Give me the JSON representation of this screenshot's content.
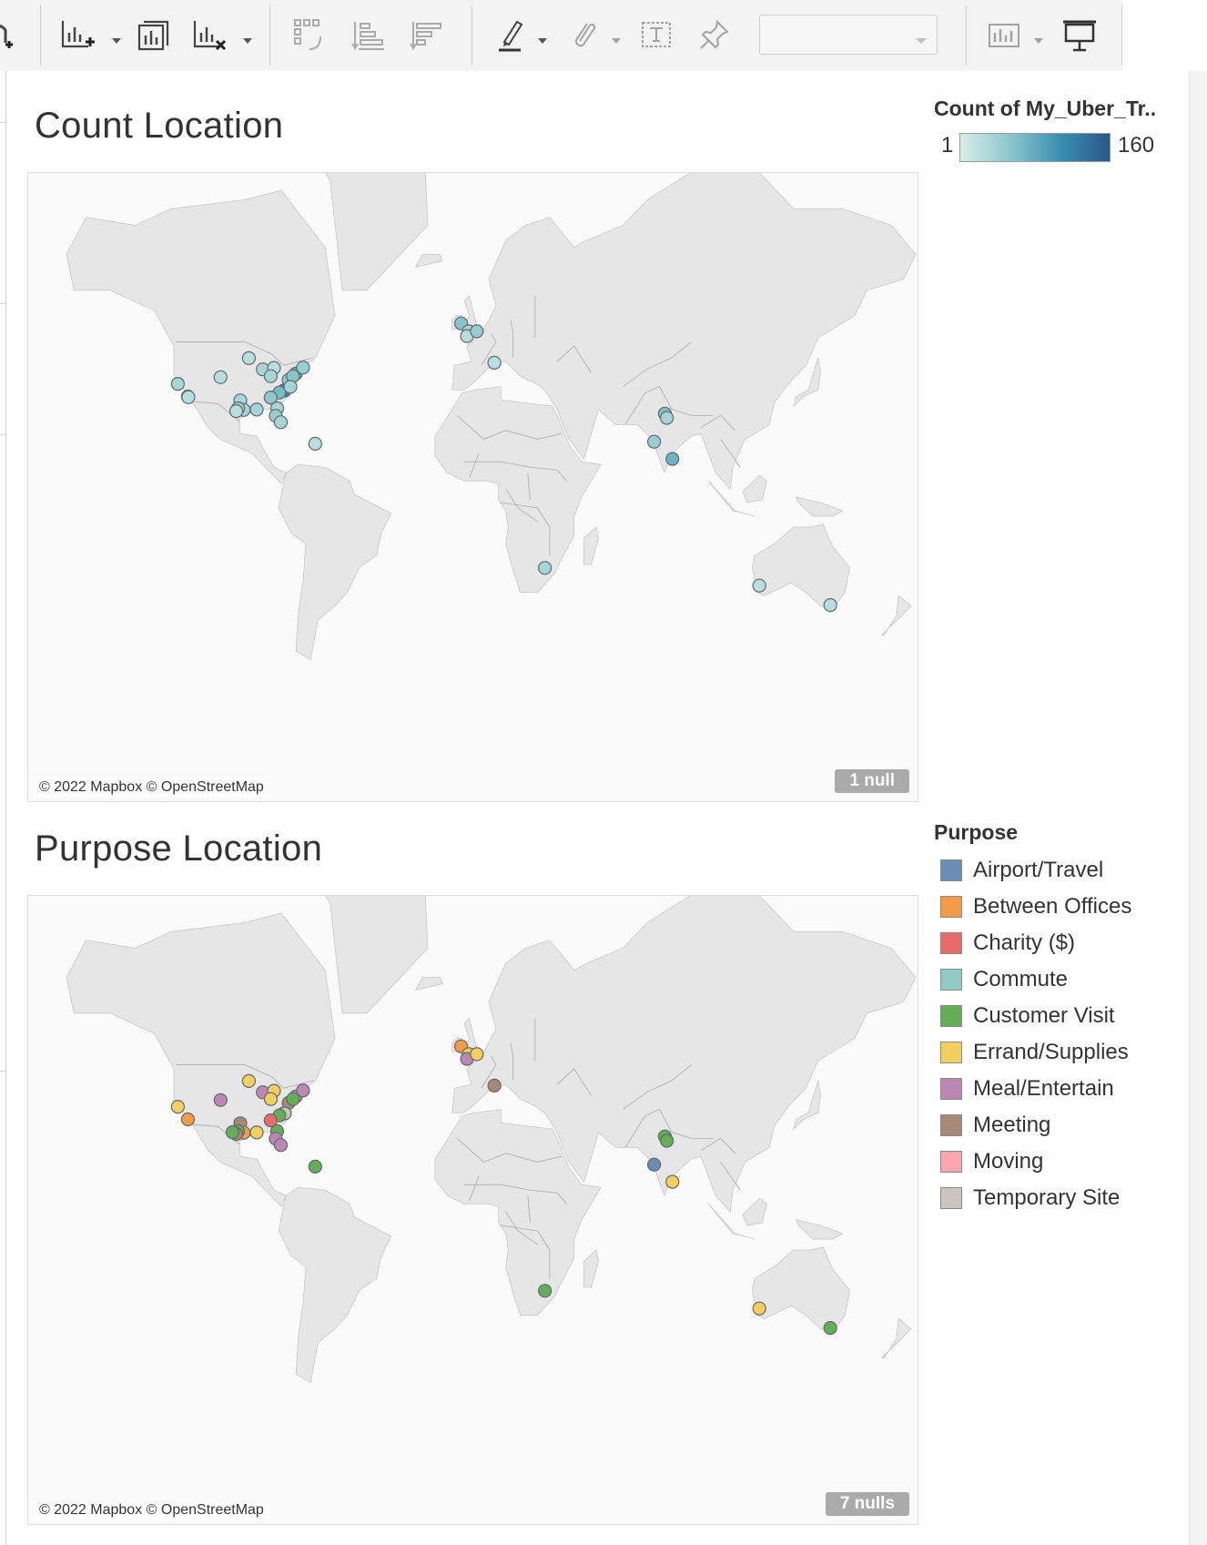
{
  "toolbar": {
    "icons": [
      "new-worksheet-icon",
      "duplicate-sheet-icon",
      "clear-sheet-icon",
      "swap-rows-columns-icon",
      "sort-ascending-icon",
      "sort-descending-icon",
      "highlight-icon",
      "annotate-icon",
      "show-labels-icon",
      "pin-icon",
      "show-me-icon",
      "presentation-mode-icon"
    ],
    "fit_select_value": ""
  },
  "sheets": {
    "count": {
      "title": "Count Location",
      "attribution": "© 2022 Mapbox © OpenStreetMap",
      "null_badge": "1 null"
    },
    "purpose": {
      "title": "Purpose Location",
      "attribution": "© 2022 Mapbox © OpenStreetMap",
      "null_badge": "7 nulls"
    }
  },
  "legends": {
    "count": {
      "title": "Count of My_Uber_Tr..",
      "min_label": "1",
      "max_label": "160",
      "colors": [
        "#d7eee9",
        "#8dc6cc",
        "#3b8fb0",
        "#2a5886"
      ]
    },
    "purpose": {
      "title": "Purpose",
      "items": [
        {
          "label": "Airport/Travel",
          "color": "#6a8db5"
        },
        {
          "label": "Between Offices",
          "color": "#f59a45"
        },
        {
          "label": "Charity ($)",
          "color": "#e86b6b"
        },
        {
          "label": "Commute",
          "color": "#8fcac3"
        },
        {
          "label": "Customer Visit",
          "color": "#66ad57"
        },
        {
          "label": "Errand/Supplies",
          "color": "#f2cf5f"
        },
        {
          "label": "Meal/Entertain",
          "color": "#bb87b3"
        },
        {
          "label": "Meeting",
          "color": "#a88877"
        },
        {
          "label": "Moving",
          "color": "#fba6b1"
        },
        {
          "label": "Temporary Site",
          "color": "#cdc3bf"
        }
      ]
    }
  },
  "count_points": [
    {
      "lon": -122.4,
      "lat": 37.8,
      "count": 3
    },
    {
      "lon": -118.3,
      "lat": 34.0,
      "count": 4
    },
    {
      "lon": -118.1,
      "lat": 33.8,
      "count": 2
    },
    {
      "lon": -104.9,
      "lat": 39.7,
      "count": 2
    },
    {
      "lon": -93.3,
      "lat": 44.9,
      "count": 2
    },
    {
      "lon": -87.6,
      "lat": 41.9,
      "count": 3
    },
    {
      "lon": -83.0,
      "lat": 42.3,
      "count": 2
    },
    {
      "lon": -84.3,
      "lat": 40.0,
      "count": 3
    },
    {
      "lon": -77.0,
      "lat": 38.9,
      "count": 5
    },
    {
      "lon": -74.0,
      "lat": 40.7,
      "count": 14
    },
    {
      "lon": -75.2,
      "lat": 40.0,
      "count": 6
    },
    {
      "lon": -71.1,
      "lat": 42.4,
      "count": 4
    },
    {
      "lon": -79.0,
      "lat": 35.8,
      "count": 160
    },
    {
      "lon": -78.6,
      "lat": 35.8,
      "count": 40
    },
    {
      "lon": -80.8,
      "lat": 35.2,
      "count": 8
    },
    {
      "lon": -76.3,
      "lat": 36.9,
      "count": 3
    },
    {
      "lon": -84.4,
      "lat": 33.7,
      "count": 5
    },
    {
      "lon": -81.7,
      "lat": 30.3,
      "count": 3
    },
    {
      "lon": -82.3,
      "lat": 27.9,
      "count": 4
    },
    {
      "lon": -80.2,
      "lat": 25.8,
      "count": 3
    },
    {
      "lon": -90.1,
      "lat": 29.9,
      "count": 3
    },
    {
      "lon": -96.8,
      "lat": 32.8,
      "count": 3
    },
    {
      "lon": -95.4,
      "lat": 29.8,
      "count": 3
    },
    {
      "lon": -97.7,
      "lat": 30.3,
      "count": 4
    },
    {
      "lon": -98.5,
      "lat": 29.4,
      "count": 2
    },
    {
      "lon": -66.1,
      "lat": 18.4,
      "count": 2
    },
    {
      "lon": -6.3,
      "lat": 53.3,
      "count": 6
    },
    {
      "lon": -3.2,
      "lat": 51.5,
      "count": 3
    },
    {
      "lon": -3.9,
      "lat": 50.4,
      "count": 2
    },
    {
      "lon": 0.1,
      "lat": 51.5,
      "count": 4
    },
    {
      "lon": 7.3,
      "lat": 43.7,
      "count": 2
    },
    {
      "lon": 77.2,
      "lat": 28.6,
      "count": 7
    },
    {
      "lon": 78.0,
      "lat": 27.2,
      "count": 3
    },
    {
      "lon": 72.8,
      "lat": 19.1,
      "count": 4
    },
    {
      "lon": 80.3,
      "lat": 13.0,
      "count": 10
    },
    {
      "lon": 28.0,
      "lat": -26.2,
      "count": 3
    },
    {
      "lon": 115.9,
      "lat": -31.9,
      "count": 2
    },
    {
      "lon": 145.0,
      "lat": -37.8,
      "count": 2
    }
  ],
  "purpose_points": [
    {
      "lon": -122.4,
      "lat": 37.8,
      "purpose": "Errand/Supplies"
    },
    {
      "lon": -118.3,
      "lat": 34.0,
      "purpose": "Between Offices"
    },
    {
      "lon": -104.9,
      "lat": 39.7,
      "purpose": "Meal/Entertain"
    },
    {
      "lon": -93.3,
      "lat": 44.9,
      "purpose": "Errand/Supplies"
    },
    {
      "lon": -87.6,
      "lat": 41.9,
      "purpose": "Meal/Entertain"
    },
    {
      "lon": -83.0,
      "lat": 42.3,
      "purpose": "Errand/Supplies"
    },
    {
      "lon": -84.3,
      "lat": 40.0,
      "purpose": "Errand/Supplies"
    },
    {
      "lon": -77.0,
      "lat": 38.9,
      "purpose": "Meeting"
    },
    {
      "lon": -74.0,
      "lat": 40.7,
      "purpose": "Meal/Entertain"
    },
    {
      "lon": -75.2,
      "lat": 40.0,
      "purpose": "Customer Visit"
    },
    {
      "lon": -71.1,
      "lat": 42.4,
      "purpose": "Meal/Entertain"
    },
    {
      "lon": -79.0,
      "lat": 35.8,
      "purpose": "Between Offices"
    },
    {
      "lon": -78.6,
      "lat": 35.8,
      "purpose": "Temporary Site"
    },
    {
      "lon": -80.8,
      "lat": 35.2,
      "purpose": "Customer Visit"
    },
    {
      "lon": -84.4,
      "lat": 33.7,
      "purpose": "Charity ($)"
    },
    {
      "lon": -81.7,
      "lat": 30.3,
      "purpose": "Customer Visit"
    },
    {
      "lon": -82.3,
      "lat": 27.9,
      "purpose": "Meal/Entertain"
    },
    {
      "lon": -80.2,
      "lat": 25.8,
      "purpose": "Meal/Entertain"
    },
    {
      "lon": -90.1,
      "lat": 29.9,
      "purpose": "Errand/Supplies"
    },
    {
      "lon": -96.8,
      "lat": 32.8,
      "purpose": "Meeting"
    },
    {
      "lon": -95.4,
      "lat": 29.8,
      "purpose": "Between Offices"
    },
    {
      "lon": -97.7,
      "lat": 30.3,
      "purpose": "Customer Visit"
    },
    {
      "lon": -98.5,
      "lat": 29.4,
      "purpose": "Meeting"
    },
    {
      "lon": -100.0,
      "lat": 30.0,
      "purpose": "Customer Visit"
    },
    {
      "lon": -66.1,
      "lat": 18.4,
      "purpose": "Customer Visit"
    },
    {
      "lon": -6.3,
      "lat": 53.3,
      "purpose": "Between Offices"
    },
    {
      "lon": -3.2,
      "lat": 51.5,
      "purpose": "Errand/Supplies"
    },
    {
      "lon": -3.9,
      "lat": 50.4,
      "purpose": "Meal/Entertain"
    },
    {
      "lon": 0.1,
      "lat": 51.5,
      "purpose": "Errand/Supplies"
    },
    {
      "lon": 7.3,
      "lat": 43.7,
      "purpose": "Meeting"
    },
    {
      "lon": 77.2,
      "lat": 28.6,
      "purpose": "Customer Visit"
    },
    {
      "lon": 78.0,
      "lat": 27.2,
      "purpose": "Customer Visit"
    },
    {
      "lon": 72.8,
      "lat": 19.1,
      "purpose": "Airport/Travel"
    },
    {
      "lon": 80.3,
      "lat": 13.0,
      "purpose": "Errand/Supplies"
    },
    {
      "lon": 28.0,
      "lat": -26.2,
      "purpose": "Customer Visit"
    },
    {
      "lon": 115.9,
      "lat": -31.9,
      "purpose": "Errand/Supplies"
    },
    {
      "lon": 145.0,
      "lat": -37.8,
      "purpose": "Customer Visit"
    }
  ]
}
